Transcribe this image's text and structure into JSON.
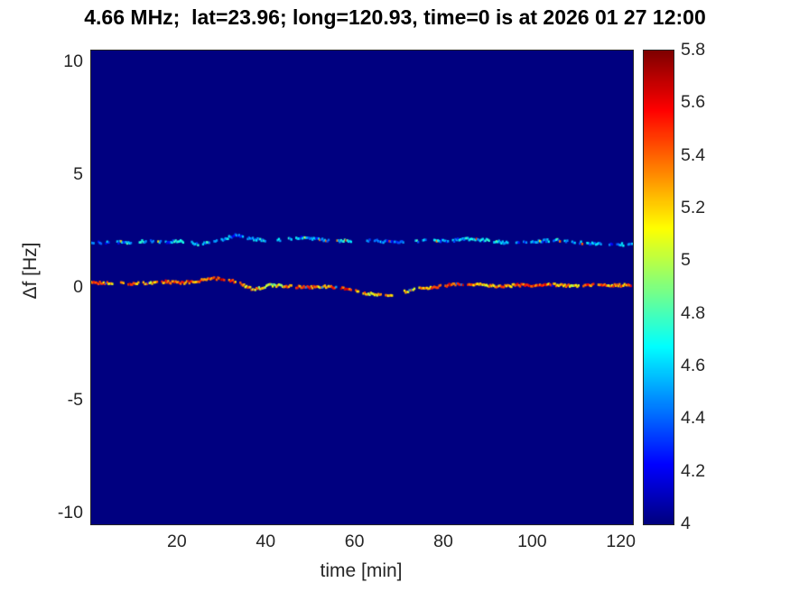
{
  "chart_data": {
    "type": "heatmap",
    "title": "4.66 MHz;  lat=23.96; long=120.93, time=0 is at 2026 01 27 12:00",
    "xlabel": "time [min]",
    "ylabel": "Δf [Hz]",
    "xlim": [
      0.5,
      122.5
    ],
    "ylim": [
      -10.5,
      10.5
    ],
    "xticks": [
      20,
      40,
      60,
      80,
      100,
      120
    ],
    "yticks": [
      10,
      5,
      0,
      -5,
      -10
    ],
    "grid": false,
    "colormap": "jet",
    "background_value": 4,
    "background_color": "#00008f",
    "colorbar": {
      "min": 4,
      "max": 5.8,
      "ticks": [
        4,
        4.2,
        4.4,
        4.6,
        4.8,
        5,
        5.2,
        5.4,
        5.6,
        5.8
      ],
      "tick_labels": [
        "4",
        "4.2",
        "4.4",
        "4.6",
        "4.8",
        "5",
        "5.2",
        "5.4",
        "5.6",
        "5.8"
      ],
      "position": "right"
    },
    "series": [
      {
        "name": "doppler-trace-near-0Hz",
        "style": "speckled-dashed-trace",
        "dash_density": 0.88,
        "fleck_delta": -0.9,
        "x": [
          0.5,
          5,
          9,
          13,
          17,
          21,
          25,
          29,
          33,
          37,
          41,
          45,
          49,
          53,
          57,
          61,
          65,
          69,
          73,
          77,
          81,
          85,
          89,
          93,
          97,
          101,
          105,
          109,
          113,
          117,
          122.5
        ],
        "y": [
          0.2,
          0.2,
          0.15,
          0.2,
          0.25,
          0.2,
          0.3,
          0.4,
          0.25,
          -0.1,
          0.1,
          0.05,
          0.0,
          0.05,
          -0.05,
          -0.2,
          -0.35,
          -0.3,
          -0.1,
          0.0,
          0.1,
          0.15,
          0.1,
          0.05,
          0.1,
          0.08,
          0.12,
          0.05,
          0.1,
          0.08,
          0.1
        ],
        "value": [
          5.4,
          5.3,
          5.5,
          5.2,
          5.4,
          5.5,
          5.3,
          5.6,
          5.4,
          5.2,
          5.0,
          5.3,
          5.4,
          5.2,
          5.5,
          5.3,
          5.1,
          5.4,
          5.2,
          5.3,
          5.5,
          5.4,
          5.2,
          5.3,
          5.4,
          5.5,
          5.3,
          5.2,
          5.4,
          5.3,
          5.4
        ]
      },
      {
        "name": "doppler-trace-near-2Hz",
        "style": "speckled-dashed-trace",
        "dash_density": 0.62,
        "fleck_delta": 0.9,
        "x": [
          0.5,
          5,
          9,
          13,
          17,
          21,
          25,
          29,
          33,
          37,
          41,
          45,
          49,
          53,
          57,
          61,
          65,
          69,
          73,
          77,
          81,
          85,
          89,
          93,
          97,
          101,
          105,
          109,
          113,
          117,
          122.5
        ],
        "y": [
          1.95,
          2.0,
          2.0,
          2.05,
          2.0,
          2.05,
          1.9,
          2.05,
          2.3,
          2.15,
          2.05,
          2.15,
          2.2,
          2.1,
          2.05,
          2.1,
          2.05,
          2.0,
          2.05,
          2.1,
          2.05,
          2.15,
          2.1,
          2.0,
          1.95,
          2.05,
          2.1,
          2.0,
          1.95,
          1.9,
          1.9
        ],
        "value": [
          4.5,
          4.4,
          4.6,
          4.5,
          4.3,
          4.7,
          4.5,
          4.6,
          4.4,
          4.5,
          4.8,
          4.6,
          4.4,
          4.5,
          4.6,
          4.4,
          4.5,
          4.3,
          4.6,
          4.5,
          4.4,
          4.6,
          4.5,
          4.7,
          4.4,
          4.5,
          4.6,
          4.4,
          4.5,
          4.4,
          4.5
        ]
      }
    ]
  }
}
